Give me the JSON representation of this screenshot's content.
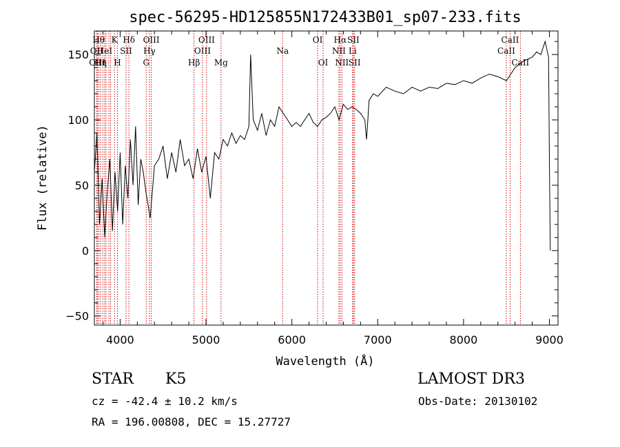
{
  "chart_data": {
    "type": "line",
    "title": "spec-56295-HD125855N172433B01_sp07-233.fits",
    "xlabel": "Wavelength (Å)",
    "ylabel": "Flux (relative)",
    "xlim": [
      3700,
      9100
    ],
    "ylim": [
      -57,
      168
    ],
    "xticks": [
      4000,
      5000,
      6000,
      7000,
      8000,
      9000
    ],
    "yticks": [
      -50,
      0,
      50,
      100,
      150
    ],
    "grid": false,
    "line_color": "#000000",
    "marker_color": "#cc0000",
    "series": [
      {
        "x": [
          3700,
          3730,
          3760,
          3790,
          3820,
          3850,
          3880,
          3910,
          3940,
          3970,
          4000,
          4030,
          4060,
          4090,
          4120,
          4150,
          4180,
          4210,
          4240,
          4270,
          4300,
          4350,
          4400,
          4450,
          4500,
          4550,
          4600,
          4650,
          4700,
          4750,
          4800,
          4850,
          4900,
          4950,
          5000,
          5050,
          5100,
          5150,
          5200,
          5250,
          5300,
          5350,
          5400,
          5450,
          5500,
          5520,
          5550,
          5600,
          5650,
          5700,
          5750,
          5800,
          5850,
          5900,
          5950,
          6000,
          6050,
          6100,
          6150,
          6200,
          6250,
          6300,
          6350,
          6400,
          6450,
          6500,
          6550,
          6600,
          6650,
          6700,
          6750,
          6800,
          6850,
          6870,
          6900,
          6950,
          7000,
          7100,
          7200,
          7300,
          7400,
          7500,
          7600,
          7700,
          7800,
          7900,
          8000,
          8100,
          8200,
          8300,
          8400,
          8500,
          8600,
          8700,
          8800,
          8850,
          8900,
          8950,
          8990,
          9000,
          9010
        ],
        "y": [
          60,
          90,
          20,
          55,
          10,
          45,
          70,
          15,
          60,
          30,
          75,
          20,
          65,
          40,
          85,
          50,
          95,
          35,
          70,
          60,
          45,
          25,
          65,
          70,
          80,
          55,
          75,
          60,
          85,
          65,
          70,
          55,
          78,
          60,
          72,
          40,
          75,
          70,
          85,
          80,
          90,
          82,
          88,
          85,
          95,
          150,
          100,
          92,
          105,
          88,
          100,
          95,
          110,
          105,
          100,
          95,
          98,
          95,
          100,
          105,
          98,
          95,
          100,
          102,
          105,
          110,
          100,
          112,
          108,
          110,
          108,
          105,
          100,
          85,
          115,
          120,
          118,
          125,
          122,
          120,
          125,
          122,
          125,
          124,
          128,
          127,
          130,
          128,
          132,
          135,
          133,
          130,
          140,
          145,
          148,
          152,
          150,
          160,
          148,
          70,
          0
        ]
      }
    ],
    "lines": [
      {
        "x": 3727,
        "label": "OII",
        "row": 1
      },
      {
        "x": 3734,
        "label": "OIII",
        "row": 2
      },
      {
        "x": 3750,
        "label": "Hθ",
        "row": 0
      },
      {
        "x": 3771,
        "label": "Hη",
        "row": 2
      },
      {
        "x": 3798,
        "label": "",
        "row": -1
      },
      {
        "x": 3820,
        "label": "HeI",
        "row": 1
      },
      {
        "x": 3835,
        "label": "",
        "row": -1
      },
      {
        "x": 3869,
        "label": "",
        "row": -1
      },
      {
        "x": 3889,
        "label": "",
        "row": -1
      },
      {
        "x": 3934,
        "label": "K",
        "row": 0
      },
      {
        "x": 3969,
        "label": "H",
        "row": 2
      },
      {
        "x": 4069,
        "label": "SII",
        "row": 1
      },
      {
        "x": 4102,
        "label": "Hδ",
        "row": 0
      },
      {
        "x": 4304,
        "label": "G",
        "row": 2
      },
      {
        "x": 4341,
        "label": "Hγ",
        "row": 1
      },
      {
        "x": 4363,
        "label": "OIII",
        "row": 0
      },
      {
        "x": 4861,
        "label": "Hβ",
        "row": 2
      },
      {
        "x": 4959,
        "label": "OIII",
        "row": 1
      },
      {
        "x": 5007,
        "label": "OIII",
        "row": 0
      },
      {
        "x": 5175,
        "label": "Mg",
        "row": 2
      },
      {
        "x": 5893,
        "label": "Na",
        "row": 1
      },
      {
        "x": 6300,
        "label": "OI",
        "row": 0
      },
      {
        "x": 6364,
        "label": "OI",
        "row": 2
      },
      {
        "x": 6548,
        "label": "NII",
        "row": 1
      },
      {
        "x": 6563,
        "label": "Hα",
        "row": 0
      },
      {
        "x": 6583,
        "label": "NII",
        "row": 2
      },
      {
        "x": 6708,
        "label": "Li",
        "row": 1
      },
      {
        "x": 6716,
        "label": "SII",
        "row": 0
      },
      {
        "x": 6731,
        "label": "SII",
        "row": 2
      },
      {
        "x": 8498,
        "label": "CaII",
        "row": 1
      },
      {
        "x": 8542,
        "label": "CaII",
        "row": 0
      },
      {
        "x": 8662,
        "label": "CaII",
        "row": 2
      }
    ]
  },
  "info": {
    "object_class": "STAR",
    "subclass": "K5",
    "survey": "LAMOST DR3",
    "redshift": "cz = -42.4 ± 10.2 km/s",
    "obs_date": "Obs-Date: 20130102",
    "coords": "RA = 196.00808, DEC =  15.27727"
  }
}
